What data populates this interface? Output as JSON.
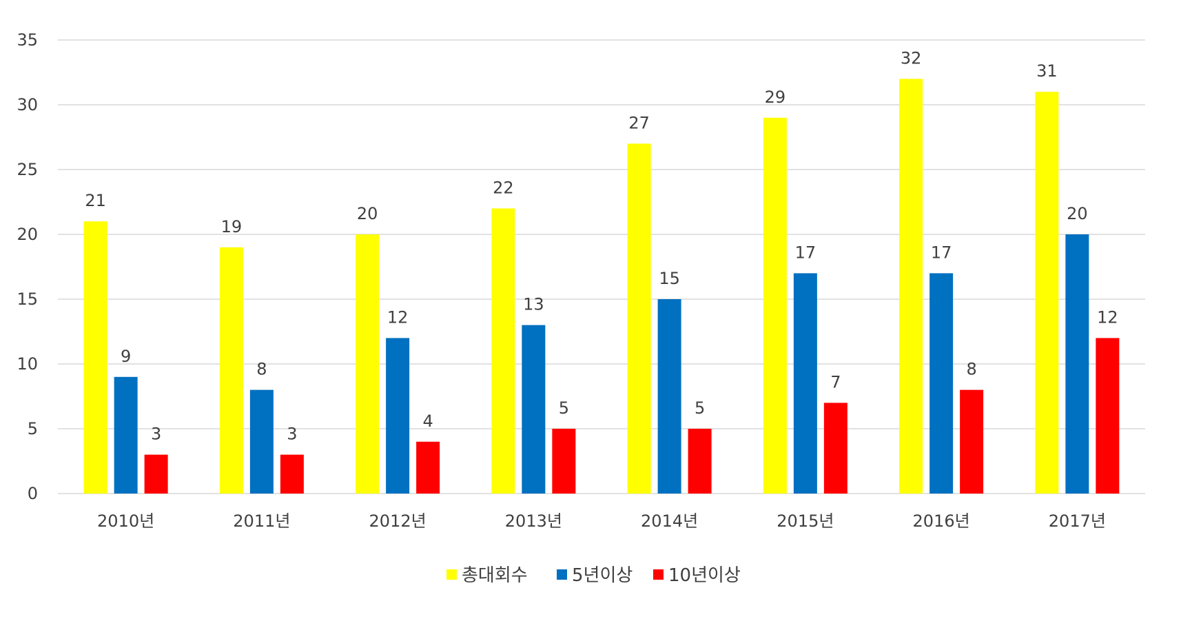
{
  "chart_data": {
    "type": "bar",
    "categories": [
      "2010년",
      "2011년",
      "2012년",
      "2013년",
      "2014년",
      "2015년",
      "2016년",
      "2017년"
    ],
    "series": [
      {
        "name": "총대회수",
        "color": "#ffff00",
        "values": [
          21,
          19,
          20,
          22,
          27,
          29,
          32,
          31
        ]
      },
      {
        "name": "5년이상",
        "color": "#0070c0",
        "values": [
          9,
          8,
          12,
          13,
          15,
          17,
          17,
          20
        ]
      },
      {
        "name": "10년이상",
        "color": "#ff0000",
        "values": [
          3,
          3,
          4,
          5,
          5,
          7,
          8,
          12
        ]
      }
    ],
    "ylim": [
      0,
      35
    ],
    "yticks": [
      0,
      5,
      10,
      15,
      20,
      25,
      30,
      35
    ],
    "grid": true,
    "legend_position": "bottom",
    "data_labels": true
  }
}
